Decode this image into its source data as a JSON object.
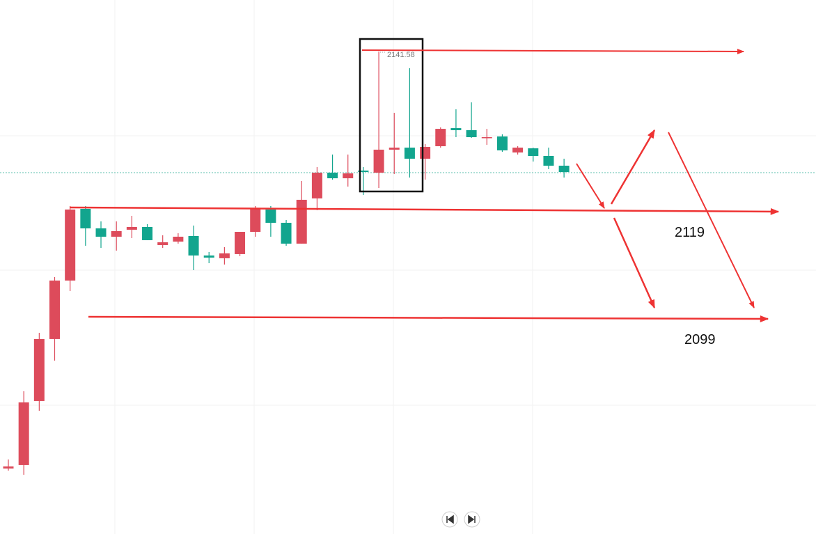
{
  "chart_data": {
    "type": "candlestick",
    "open": [
      2082.52,
      2083.01,
      2092.08,
      2100.86,
      2109.14,
      2119.3,
      2116.53,
      2115.35,
      2116.34,
      2116.73,
      2114.17,
      2114.66,
      2115.45,
      2112.69,
      2112.3,
      2112.89,
      2116.04,
      2119.2,
      2117.32,
      2114.37,
      2120.77,
      2124.42,
      2123.63,
      2124.72,
      2124.42,
      2127.68,
      2127.97,
      2126.4,
      2128.17,
      2130.73,
      2130.44,
      2129.35,
      2129.55,
      2127.28,
      2127.87,
      2126.79,
      2125.41
    ],
    "high": [
      2083.8,
      2093.46,
      2101.74,
      2109.63,
      2119.69,
      2119.69,
      2117.52,
      2117.52,
      2118.31,
      2117.13,
      2115.55,
      2115.84,
      2116.93,
      2113.18,
      2113.87,
      2116.04,
      2119.69,
      2119.69,
      2117.72,
      2123.24,
      2125.21,
      2126.99,
      2126.99,
      2125.21,
      2141.58,
      2132.9,
      2139.21,
      2128.47,
      2130.83,
      2133.4,
      2134.38,
      2130.63,
      2129.85,
      2128.17,
      2127.97,
      2127.97,
      2126.4
    ],
    "low": [
      2082.22,
      2081.63,
      2090.7,
      2097.8,
      2107.66,
      2114.07,
      2113.77,
      2113.38,
      2115.15,
      2114.86,
      2113.77,
      2114.37,
      2110.62,
      2111.6,
      2111.41,
      2112.59,
      2115.35,
      2115.35,
      2114.07,
      2114.37,
      2119.1,
      2123.44,
      2122.45,
      2121.27,
      2122.25,
      2124.23,
      2123.73,
      2123.44,
      2127.97,
      2129.45,
      2129.35,
      2128.37,
      2127.38,
      2126.99,
      2126.0,
      2124.92,
      2123.73
    ],
    "close": [
      2082.81,
      2091.88,
      2100.86,
      2109.14,
      2119.2,
      2116.53,
      2115.35,
      2116.14,
      2116.73,
      2114.86,
      2114.56,
      2115.35,
      2112.69,
      2112.39,
      2112.99,
      2116.04,
      2119.3,
      2117.32,
      2114.37,
      2120.58,
      2124.42,
      2123.63,
      2124.32,
      2124.52,
      2127.68,
      2127.97,
      2126.4,
      2128.07,
      2130.63,
      2130.44,
      2129.45,
      2129.45,
      2127.58,
      2127.97,
      2126.79,
      2125.41,
      2124.52
    ],
    "up_color": "#dd4b5b",
    "down_color": "#12a58e",
    "ylim": [
      2073.24,
      2148.88
    ],
    "annotations": [
      2119,
      2099
    ]
  }
}
